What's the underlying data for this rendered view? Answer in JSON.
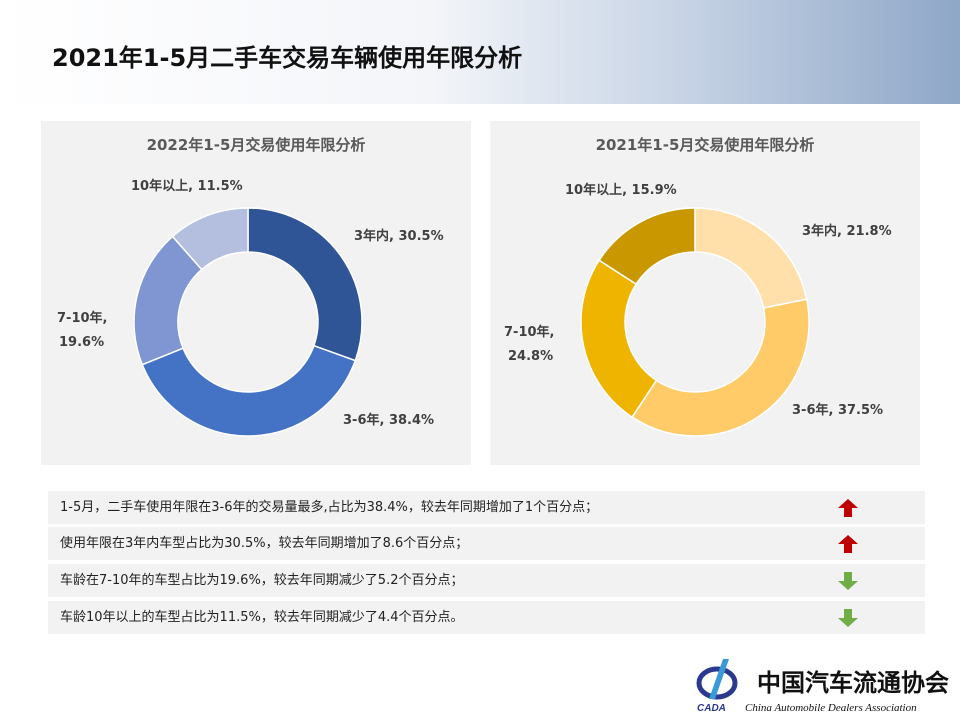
{
  "title": "2021年1-5月二手车交易车辆使用年限分析",
  "chart_data": [
    {
      "type": "pie",
      "donut": true,
      "title": "2022年1-5月交易使用年限分析",
      "categories": [
        "3年内",
        "3-6年",
        "7-10年",
        "10年以上"
      ],
      "values": [
        30.5,
        38.4,
        19.6,
        11.5
      ],
      "labels": [
        "3年内, 30.5%",
        "3-6年, 38.4%",
        "7-10年,",
        "19.6%",
        "10年以上, 11.5%"
      ],
      "colors": [
        "#2F5597",
        "#4472C4",
        "#7F96D2",
        "#B4BFE0"
      ]
    },
    {
      "type": "pie",
      "donut": true,
      "title": "2021年1-5月交易使用年限分析",
      "categories": [
        "3年内",
        "3-6年",
        "7-10年",
        "10年以上"
      ],
      "values": [
        21.8,
        37.5,
        24.8,
        15.9
      ],
      "labels": [
        "3年内, 21.8%",
        "3-6年, 37.5%",
        "7-10年,",
        "24.8%",
        "10年以上, 15.9%"
      ],
      "colors": [
        "#FFDFAA",
        "#FFCA68",
        "#EFB400",
        "#C99800"
      ]
    }
  ],
  "notes": [
    {
      "text": "1-5月，二手车使用年限在3-6年的交易量最多,占比为38.4%，较去年同期增加了1个百分点；",
      "trend": "up"
    },
    {
      "text": "使用年限在3年内车型占比为30.5%，较去年同期增加了8.6个百分点；",
      "trend": "up"
    },
    {
      "text": "车龄在7-10年的车型占比为19.6%，较去年同期减少了5.2个百分点；",
      "trend": "down"
    },
    {
      "text": "车龄10年以上的车型占比为11.5%，较去年同期减少了4.4个百分点。",
      "trend": "down"
    }
  ],
  "colors": {
    "up": "#C00000",
    "down": "#70AD47"
  },
  "logo": {
    "name": "中国汽车流通协会",
    "english": "China Automobile Dealers Association",
    "abbr": "CADA"
  }
}
